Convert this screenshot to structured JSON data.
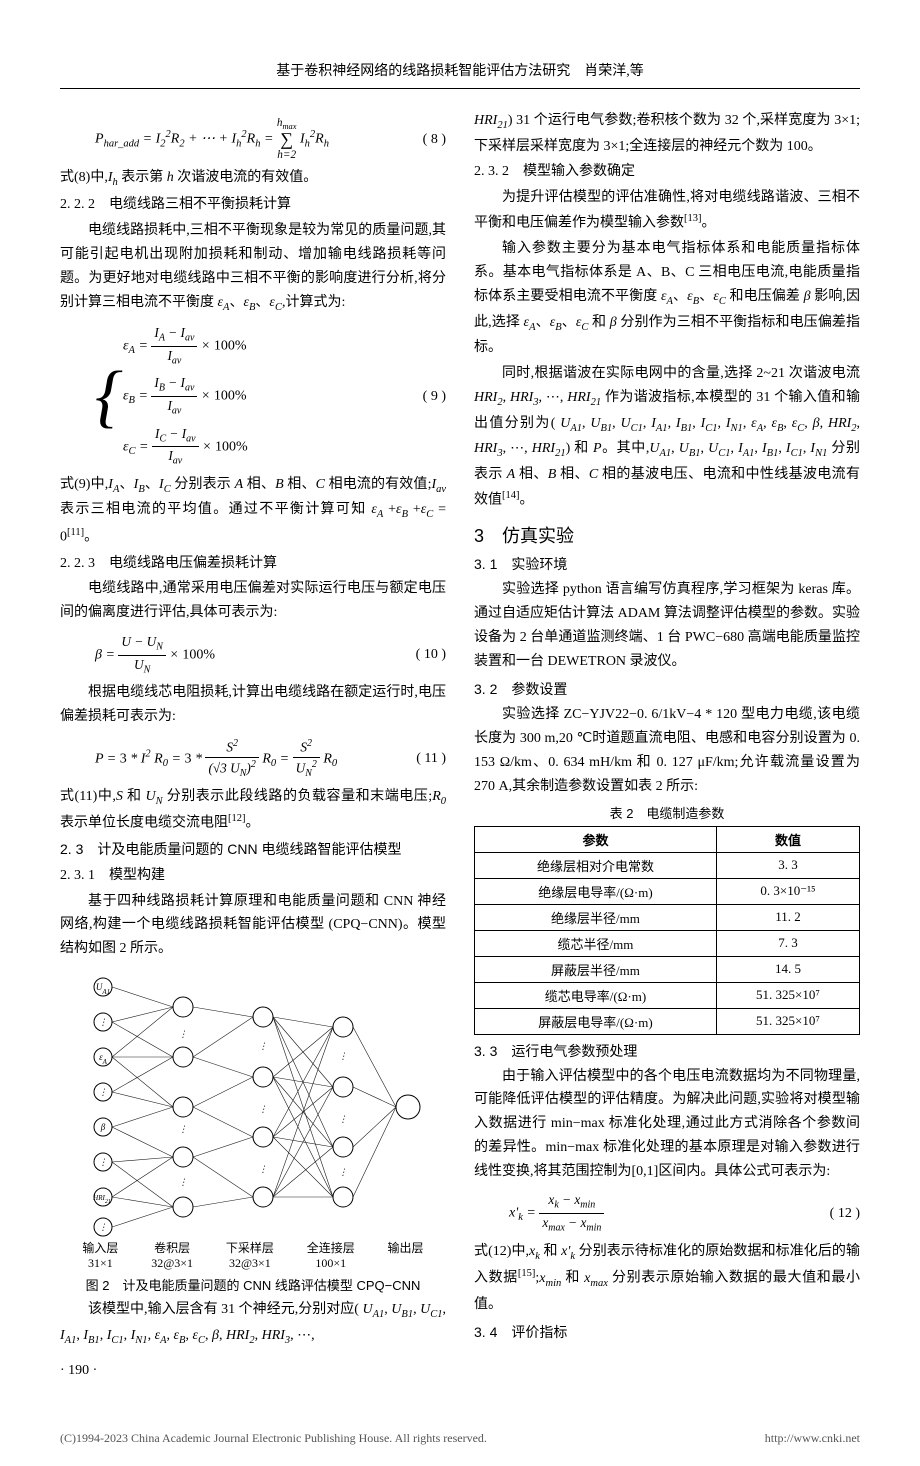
{
  "header": {
    "title": "基于卷积神经网络的线路损耗智能评估方法研究　肖荣洋,等"
  },
  "left": {
    "eq8": {
      "body": "P_{har_add} = I_2^2 R_2 + ⋯ + I_h^2 R_h = Σ_{h=2}^{h_max} I_h^2 R_h",
      "num": "( 8 )"
    },
    "p_eq8_desc": "式(8)中,I_h 表示第 h 次谐波电流的有效值。",
    "s222": "2. 2. 2　电缆线路三相不平衡损耗计算",
    "p222": "电缆线路损耗中,三相不平衡现象是较为常见的质量问题,其可能引起电机出现附加损耗和制动、增加输电线路损耗等问题。为更好地对电缆线路中三相不平衡的影响度进行分析,将分别计算三相电流不平衡度 ε_A、ε_B、ε_C ,计算式为:",
    "eq9": {
      "lines": [
        "ε_A = (I_A − I_av)/I_av × 100%",
        "ε_B = (I_B − I_av)/I_av × 100%",
        "ε_C = (I_C − I_av)/I_av × 100%"
      ],
      "num": "( 9 )"
    },
    "p_eq9_desc": "式(9)中,I_A、I_B、I_C 分别表示 A 相、B 相、C 相电流的有效值;I_av 表示三相电流的平均值。通过不平衡计算可知 ε_A + ε_B + ε_C = 0^{[11]}。",
    "s223": "2. 2. 3　电缆线路电压偏差损耗计算",
    "p223a": "电缆线路中,通常采用电压偏差对实际运行电压与额定电压间的偏离度进行评估,具体可表示为:",
    "eq10": {
      "body": "β = (U − U_N)/U_N × 100%",
      "num": "( 10 )"
    },
    "p223b": "根据电缆线芯电阻损耗,计算出电缆线路在额定运行时,电压偏差损耗可表示为:",
    "eq11": {
      "body": "P = 3 * I^2 R_0 = 3 * S^2 / (√3 U_N)^2 · R_0 = S^2 / U_N^2 · R_0",
      "num": "( 11 )"
    },
    "p_eq11_desc": "式(11)中,S 和 U_N 分别表示此段线路的负载容量和末端电压; R_0 表示单位长度电缆交流电阻^{[12]}。",
    "s23": "2. 3　计及电能质量问题的 CNN 电缆线路智能评估模型",
    "s231": "2. 3. 1　模型构建",
    "p231": "基于四种线路损耗计算原理和电能质量问题和 CNN 神经网络,构建一个电缆线路损耗智能评估模型 (CPQ−CNN)。模型结构如图 2 所示。",
    "fig2": {
      "layers": [
        "输入层\n31×1",
        "卷积层\n32@3×1",
        "下采样层\n32@3×1",
        "全连接层\n100×1",
        "输出层"
      ],
      "input_nodes": [
        "U_A1",
        "⋮",
        "ε_A",
        "⋮",
        "β",
        "⋮",
        "HRI_21",
        "⋮"
      ],
      "caption": "图 2　计及电能质量问题的 CNN 线路评估模型 CPQ−CNN"
    },
    "p_fig2_desc": "该模型中,输入层含有 31 个神经元,分别对应( U_{A1}, U_{B1}, U_{C1}, I_{A1}, I_{B1}, I_{C1}, I_{N1}, ε_A, ε_B, ε_C, β, HRI_2, HRI_3, …,",
    "page_num": "· 190 ·"
  },
  "right": {
    "p_cont": "HRI_{21}) 31 个运行电气参数;卷积核个数为 32 个,采样宽度为 3×1;下采样层采样宽度为 3×1;全连接层的神经元个数为 100。",
    "s232": "2. 3. 2　模型输入参数确定",
    "p232a": "为提升评估模型的评估准确性,将对电缆线路谐波、三相不平衡和电压偏差作为模型输入参数^{[13]}。",
    "p232b": "输入参数主要分为基本电气指标体系和电能质量指标体系。基本电气指标体系是 A、B、C 三相电压电流,电能质量指标体系主要受相电流不平衡度 ε_A、ε_B、ε_C 和电压偏差 β 影响,因此,选择 ε_A、ε_B、ε_C 和 β 分别作为三相不平衡指标和电压偏差指标。",
    "p232c": "同时,根据谐波在实际电网中的含量,选择 2~21 次谐波电流 HRI_2, HRI_3, …, HRI_{21} 作为谐波指标,本模型的 31 个输入值和输出值分别为( U_{A1}, U_{B1}, U_{C1}, I_{A1}, I_{B1}, I_{C1}, I_{N1}, ε_A, ε_B, ε_C, β, HRI_2, HRI_3, …, HRI_{21}) 和 P。其中,U_{A1}, U_{B1}, U_{C1}, I_{A1}, I_{B1}, I_{C1}, I_{N1} 分别表示 A 相、B 相、C 相的基波电压、电流和中性线基波电流有效值^{[14]}。",
    "s3": "3　仿真实验",
    "s31": "3. 1　实验环境",
    "p31": "实验选择 python 语言编写仿真程序,学习框架为 keras 库。通过自适应矩估计算法 ADAM 算法调整评估模型的参数。实验设备为 2 台单通道监测终端、1 台 PWC−680 高端电能质量监控装置和一台 DEWETRON 录波仪。",
    "s32": "3. 2　参数设置",
    "p32": "实验选择 ZC−YJV22−0. 6/1kV−4 * 120 型电力电缆,该电缆长度为 300 m,20 ℃时道题直流电阻、电感和电容分别设置为 0. 153 Ω/km、0. 634 mH/km 和 0. 127 μF/km;允许载流量设置为 270 A,其余制造参数设置如表 2 所示:",
    "table2": {
      "title": "表 2　电缆制造参数",
      "cols": [
        "参数",
        "数值"
      ],
      "rows": [
        [
          "绝缘层相对介电常数",
          "3. 3"
        ],
        [
          "绝缘层电导率/(Ω·m)",
          "0. 3×10⁻¹⁵"
        ],
        [
          "绝缘层半径/mm",
          "11. 2"
        ],
        [
          "缆芯半径/mm",
          "7. 3"
        ],
        [
          "屏蔽层半径/mm",
          "14. 5"
        ],
        [
          "缆芯电导率/(Ω·m)",
          "51. 325×10⁷"
        ],
        [
          "屏蔽层电导率/(Ω·m)",
          "51. 325×10⁷"
        ]
      ]
    },
    "s33": "3. 3　运行电气参数预处理",
    "p33": "由于输入评估模型中的各个电压电流数据均为不同物理量,可能降低评估模型的评估精度。为解决此问题,实验将对模型输入数据进行 min−max 标准化处理,通过此方式消除各个参数间的差异性。min−max 标准化处理的基本原理是对输入参数进行线性变换,将其范围控制为[0,1]区间内。具体公式可表示为:",
    "eq12": {
      "body": "x'_k = (x_k − x_min)/(x_max − x_min)",
      "num": "( 12 )"
    },
    "p_eq12_desc": "式(12)中,x_k 和 x'_k 分别表示待标准化的原始数据和标准化后的输入数据^{[15]}; x_min 和 x_max 分别表示原始输入数据的最大值和最小值。",
    "s34": "3. 4　评价指标"
  },
  "footer": {
    "left": "(C)1994-2023 China Academic Journal Electronic Publishing House. All rights reserved.",
    "right": "http://www.cnki.net"
  }
}
